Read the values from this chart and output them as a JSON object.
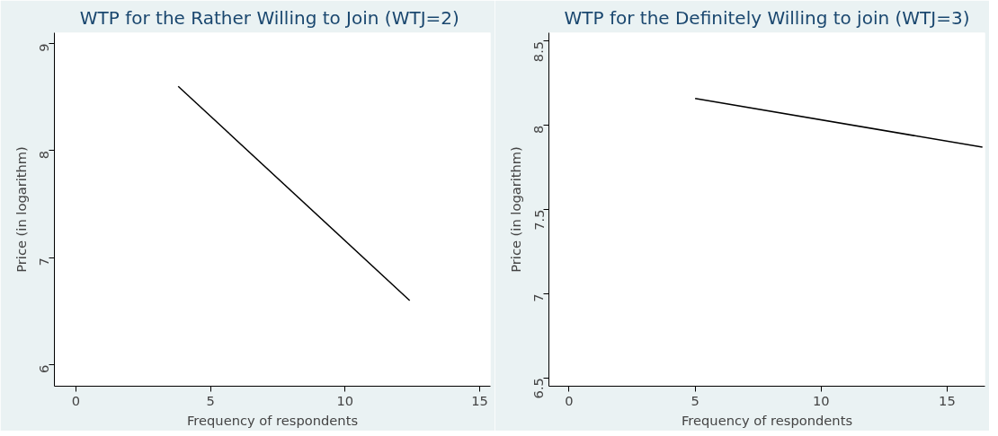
{
  "chart_data": [
    {
      "type": "line",
      "title": "WTP  for the Rather Willing to Join (WTJ=2)",
      "xlabel": "Frequency of respondents",
      "ylabel": "Price (in logarithm)",
      "xlim": [
        -0.8,
        15.4
      ],
      "ylim": [
        5.8,
        9.1
      ],
      "xticks": [
        0,
        5,
        10,
        15
      ],
      "yticks": [
        6,
        7,
        8,
        9
      ],
      "series": [
        {
          "color": "#000000",
          "x": [
            3.8,
            12.4
          ],
          "values": [
            8.6,
            6.6
          ]
        }
      ]
    },
    {
      "type": "line",
      "title": "WTP for the Definitely Willing to join (WTJ=3)",
      "xlabel": "Frequency of respondents",
      "ylabel": "Price (in logarithm)",
      "xlim": [
        -0.8,
        16.5
      ],
      "ylim": [
        6.45,
        8.55
      ],
      "xticks": [
        0,
        5,
        10,
        15
      ],
      "yticks": [
        6.5,
        7,
        7.5,
        8,
        8.5
      ],
      "series": [
        {
          "color": "#000000",
          "x": [
            5,
            16.4
          ],
          "values": [
            8.16,
            7.87
          ]
        }
      ]
    }
  ]
}
